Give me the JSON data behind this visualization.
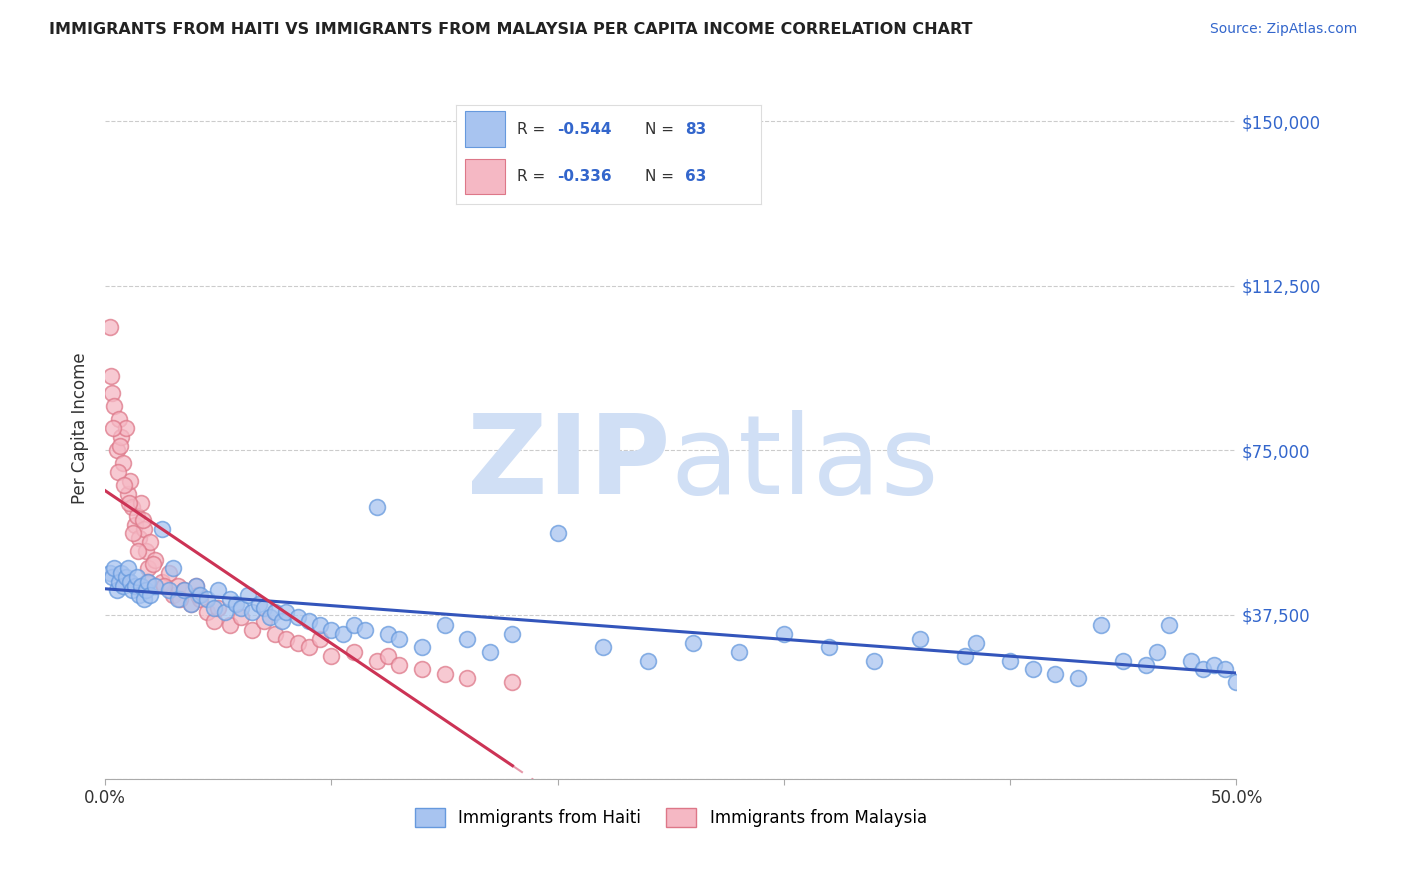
{
  "title": "IMMIGRANTS FROM HAITI VS IMMIGRANTS FROM MALAYSIA PER CAPITA INCOME CORRELATION CHART",
  "source": "Source: ZipAtlas.com",
  "ylabel": "Per Capita Income",
  "yticks": [
    0,
    37500,
    75000,
    112500,
    150000
  ],
  "ytick_labels": [
    "",
    "$37,500",
    "$75,000",
    "$112,500",
    "$150,000"
  ],
  "xlim": [
    0.0,
    50.0
  ],
  "ylim": [
    0,
    160000
  ],
  "haiti_color": "#a8c4f0",
  "malaysia_color": "#f5b8c4",
  "haiti_edge": "#6699dd",
  "malaysia_edge": "#dd7788",
  "haiti_R": -0.544,
  "haiti_N": 83,
  "malaysia_R": -0.336,
  "malaysia_N": 63,
  "haiti_line_color": "#3355bb",
  "malaysia_line_color": "#cc3355",
  "watermark_ZIP": "ZIP",
  "watermark_atlas": "atlas",
  "watermark_color": "#d0dff5",
  "legend_color": "#3366cc",
  "haiti_x": [
    0.2,
    0.3,
    0.4,
    0.5,
    0.6,
    0.7,
    0.8,
    0.9,
    1.0,
    1.1,
    1.2,
    1.3,
    1.4,
    1.5,
    1.6,
    1.7,
    1.8,
    1.9,
    2.0,
    2.2,
    2.5,
    2.8,
    3.0,
    3.2,
    3.5,
    3.8,
    4.0,
    4.2,
    4.5,
    4.8,
    5.0,
    5.3,
    5.5,
    5.8,
    6.0,
    6.3,
    6.5,
    6.8,
    7.0,
    7.3,
    7.5,
    7.8,
    8.0,
    8.5,
    9.0,
    9.5,
    10.0,
    10.5,
    11.0,
    11.5,
    12.0,
    12.5,
    13.0,
    14.0,
    15.0,
    16.0,
    17.0,
    18.0,
    20.0,
    22.0,
    24.0,
    26.0,
    28.0,
    30.0,
    32.0,
    34.0,
    36.0,
    38.0,
    40.0,
    41.0,
    42.0,
    43.0,
    44.0,
    45.0,
    46.0,
    47.0,
    48.0,
    48.5,
    49.0,
    49.5,
    50.0,
    46.5,
    38.5
  ],
  "haiti_y": [
    47000,
    46000,
    48000,
    43000,
    45000,
    47000,
    44000,
    46000,
    48000,
    45000,
    43000,
    44000,
    46000,
    42000,
    44000,
    41000,
    43000,
    45000,
    42000,
    44000,
    57000,
    43000,
    48000,
    41000,
    43000,
    40000,
    44000,
    42000,
    41000,
    39000,
    43000,
    38000,
    41000,
    40000,
    39000,
    42000,
    38000,
    40000,
    39000,
    37000,
    38000,
    36000,
    38000,
    37000,
    36000,
    35000,
    34000,
    33000,
    35000,
    34000,
    62000,
    33000,
    32000,
    30000,
    35000,
    32000,
    29000,
    33000,
    56000,
    30000,
    27000,
    31000,
    29000,
    33000,
    30000,
    27000,
    32000,
    28000,
    27000,
    25000,
    24000,
    23000,
    35000,
    27000,
    26000,
    35000,
    27000,
    25000,
    26000,
    25000,
    22000,
    29000,
    31000
  ],
  "malaysia_x": [
    0.2,
    0.3,
    0.4,
    0.5,
    0.6,
    0.7,
    0.8,
    0.9,
    1.0,
    1.1,
    1.2,
    1.3,
    1.4,
    1.5,
    1.6,
    1.7,
    1.8,
    1.9,
    2.0,
    2.2,
    2.5,
    2.8,
    3.0,
    3.2,
    3.5,
    3.8,
    4.0,
    4.2,
    4.5,
    4.8,
    5.0,
    5.5,
    6.0,
    6.5,
    7.0,
    7.5,
    8.0,
    8.5,
    9.0,
    9.5,
    10.0,
    11.0,
    12.0,
    12.5,
    13.0,
    14.0,
    15.0,
    16.0,
    0.25,
    0.35,
    0.55,
    0.65,
    0.85,
    1.05,
    1.25,
    1.45,
    1.65,
    1.85,
    2.1,
    2.6,
    3.3,
    4.1,
    18.0
  ],
  "malaysia_y": [
    103000,
    88000,
    85000,
    75000,
    82000,
    78000,
    72000,
    80000,
    65000,
    68000,
    62000,
    58000,
    60000,
    55000,
    63000,
    57000,
    52000,
    48000,
    54000,
    50000,
    45000,
    47000,
    42000,
    44000,
    43000,
    40000,
    44000,
    41000,
    38000,
    36000,
    39000,
    35000,
    37000,
    34000,
    36000,
    33000,
    32000,
    31000,
    30000,
    32000,
    28000,
    29000,
    27000,
    28000,
    26000,
    25000,
    24000,
    23000,
    92000,
    80000,
    70000,
    76000,
    67000,
    63000,
    56000,
    52000,
    59000,
    45000,
    49000,
    44000,
    41000,
    42000,
    22000
  ]
}
